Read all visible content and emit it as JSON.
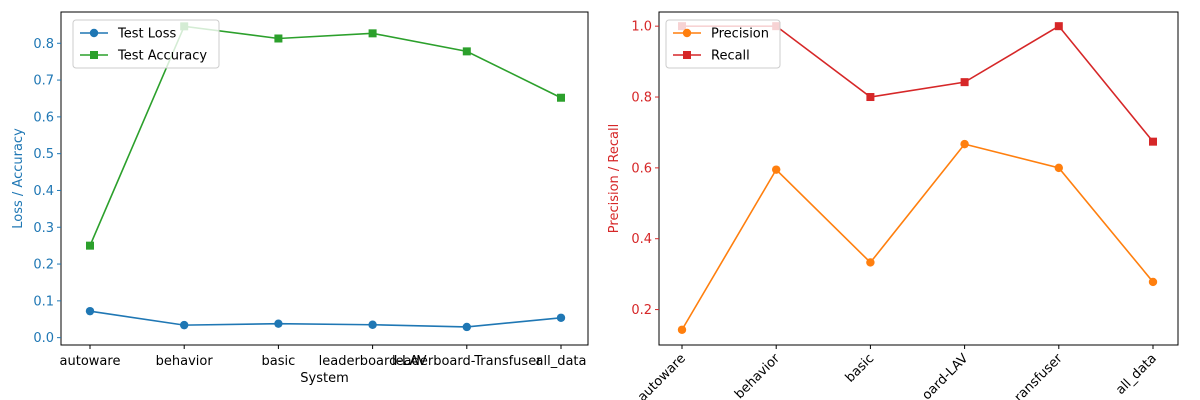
{
  "chart_data": [
    {
      "type": "line",
      "categories": [
        "autoware",
        "behavior",
        "basic",
        "leaderboard-LAV",
        "leaderboard-Transfuser",
        "all_data"
      ],
      "xlabel": "System",
      "ylabel": "Loss / Accuracy",
      "ylim": [
        -0.02,
        0.885
      ],
      "yticks": [
        0.0,
        0.1,
        0.2,
        0.3,
        0.4,
        0.5,
        0.6,
        0.7,
        0.8
      ],
      "ylabel_color": "#1f77b4",
      "legend_position": "upper left",
      "series": [
        {
          "name": "Test Loss",
          "color": "#1f77b4",
          "marker": "circle",
          "values": [
            0.072,
            0.034,
            0.038,
            0.035,
            0.029,
            0.054
          ]
        },
        {
          "name": "Test Accuracy",
          "color": "#2ca02c",
          "marker": "square",
          "values": [
            0.25,
            0.846,
            0.813,
            0.827,
            0.778,
            0.652
          ]
        }
      ]
    },
    {
      "type": "line",
      "categories": [
        "autoware",
        "behavior",
        "basic",
        "leaderboard-LAV",
        "leaderboard-Transfuser",
        "all_data"
      ],
      "tick_labels_visible": [
        "autoware",
        "behavior",
        "basic",
        "oard-LAV",
        "ransfuser",
        "all_data"
      ],
      "tick_rotation_deg": 45,
      "xlabel": "",
      "ylabel": "Precision / Recall",
      "ylim": [
        0.1,
        1.04
      ],
      "yticks": [
        0.2,
        0.4,
        0.6,
        0.8,
        1.0
      ],
      "ylabel_color": "#d62728",
      "legend_position": "upper left",
      "series": [
        {
          "name": "Precision",
          "color": "#ff7f0e",
          "marker": "circle",
          "values": [
            0.143,
            0.595,
            0.333,
            0.667,
            0.6,
            0.278
          ]
        },
        {
          "name": "Recall",
          "color": "#d62728",
          "marker": "square",
          "values": [
            1.0,
            1.0,
            0.8,
            0.842,
            1.0,
            0.674
          ]
        }
      ]
    }
  ]
}
